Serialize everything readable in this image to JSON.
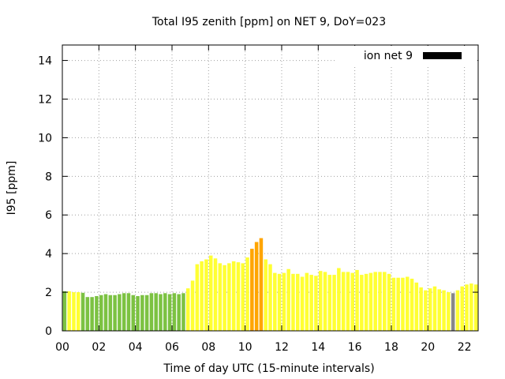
{
  "chart_data": {
    "type": "bar",
    "title": "Total I95 zenith [ppm] on NET 9, DoY=023",
    "xlabel": "Time of day UTC (15-minute intervals)",
    "ylabel": "I95 [ppm]",
    "xlim": [
      0,
      22.75
    ],
    "ylim": [
      0,
      14.8
    ],
    "xticks": [
      "00",
      "02",
      "04",
      "06",
      "08",
      "10",
      "12",
      "14",
      "16",
      "18",
      "20",
      "22"
    ],
    "yticks": [
      "0",
      "2",
      "4",
      "6",
      "8",
      "10",
      "12",
      "14"
    ],
    "grid": true,
    "legend": {
      "label": "ion net 9",
      "position": "top-right",
      "color": "#000000"
    },
    "colors": {
      "green": "#7cc242",
      "yellow": "#ffff33",
      "orange": "#ffa500",
      "gap": "#888888"
    },
    "x_step_hours": 0.25,
    "values": [
      2.05,
      2.05,
      2.0,
      2.0,
      1.97,
      1.75,
      1.75,
      1.8,
      1.85,
      1.9,
      1.85,
      1.85,
      1.9,
      1.95,
      1.95,
      1.85,
      1.8,
      1.85,
      1.85,
      1.95,
      1.95,
      1.9,
      1.95,
      1.9,
      1.95,
      1.9,
      1.95,
      2.2,
      2.6,
      3.45,
      3.6,
      3.7,
      3.9,
      3.75,
      3.5,
      3.4,
      3.5,
      3.6,
      3.55,
      3.5,
      3.8,
      4.25,
      4.6,
      4.8,
      3.7,
      3.45,
      3.0,
      2.95,
      3.0,
      3.2,
      2.95,
      2.95,
      2.8,
      3.0,
      2.9,
      2.85,
      3.1,
      3.05,
      2.9,
      2.9,
      3.25,
      3.05,
      3.05,
      3.0,
      3.15,
      2.9,
      2.95,
      3.0,
      3.05,
      3.05,
      3.05,
      2.95,
      2.75,
      2.75,
      2.75,
      2.8,
      2.7,
      2.5,
      2.25,
      2.1,
      2.2,
      2.3,
      2.15,
      2.1,
      2.0,
      1.95,
      2.1,
      2.3,
      2.4,
      2.45,
      2.4
    ],
    "categories": [
      "G",
      "Y",
      "Y",
      "Y",
      "G",
      "G",
      "G",
      "G",
      "G",
      "G",
      "G",
      "G",
      "G",
      "G",
      "G",
      "G",
      "G",
      "G",
      "G",
      "G",
      "G",
      "G",
      "G",
      "G",
      "G",
      "G",
      "G",
      "Y",
      "Y",
      "Y",
      "Y",
      "Y",
      "Y",
      "Y",
      "Y",
      "Y",
      "Y",
      "Y",
      "Y",
      "Y",
      "Y",
      "O",
      "O",
      "O",
      "Y",
      "Y",
      "Y",
      "Y",
      "Y",
      "Y",
      "Y",
      "Y",
      "Y",
      "Y",
      "Y",
      "Y",
      "Y",
      "Y",
      "Y",
      "Y",
      "Y",
      "Y",
      "Y",
      "Y",
      "Y",
      "Y",
      "Y",
      "Y",
      "Y",
      "Y",
      "Y",
      "Y",
      "Y",
      "Y",
      "Y",
      "Y",
      "Y",
      "Y",
      "Y",
      "Y",
      "Y",
      "Y",
      "Y",
      "Y",
      "Y",
      "D",
      "Y",
      "Y",
      "Y",
      "Y",
      "Y"
    ]
  }
}
